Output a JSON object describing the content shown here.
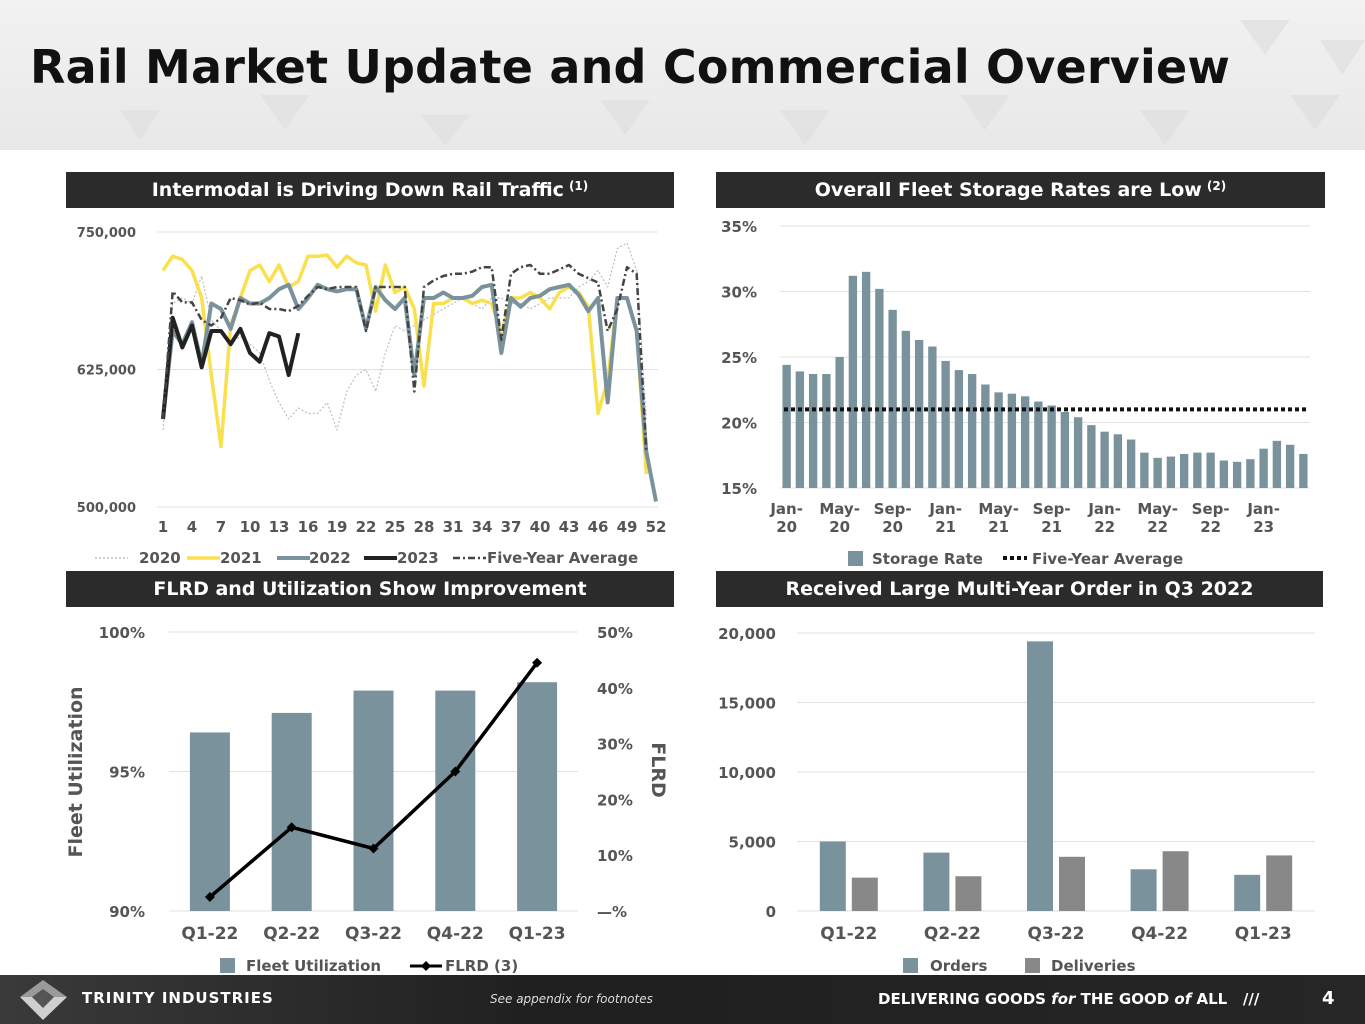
{
  "page_title": "Rail Market Update and Commercial Overview",
  "panels": {
    "p1_title": "Intermodal is Driving Down Rail Traffic",
    "p1_sup": "(1)",
    "p2_title": "Overall Fleet Storage Rates are Low",
    "p2_sup": "(2)",
    "p3_title": "FLRD and Utilization Show Improvement",
    "p4_title": "Received Large Multi-Year Order in Q3 2022"
  },
  "footer": {
    "brand": "TRINITY INDUSTRIES",
    "footnote": "See appendix for footnotes",
    "tagline_1": "DELIVERING GOODS ",
    "tagline_for": "for",
    "tagline_2": " THE GOOD ",
    "tagline_of": "of",
    "tagline_3": " ALL",
    "slashes": "///",
    "page": "4"
  },
  "colors": {
    "slate": "#7a929c",
    "yellow": "#f8e04e",
    "gray": "#888888",
    "dark": "#222222",
    "banner": "#2b2b2b"
  },
  "chart_data": [
    {
      "type": "line",
      "title": "Intermodal is Driving Down Rail Traffic",
      "ylim": [
        500000,
        750000
      ],
      "yticks": [
        500000,
        625000,
        750000
      ],
      "ytick_labels": [
        "500,000",
        "625,000",
        "750,000"
      ],
      "xticks": [
        1,
        4,
        7,
        10,
        13,
        16,
        19,
        22,
        25,
        28,
        31,
        34,
        37,
        40,
        43,
        46,
        49,
        52
      ],
      "series": [
        {
          "name": "2020",
          "values": [
            570000,
            685000,
            690000,
            685000,
            710000,
            670000,
            660000,
            650000,
            655000,
            648000,
            640000,
            615000,
            595000,
            580000,
            590000,
            585000,
            585000,
            595000,
            570000,
            605000,
            620000,
            625000,
            605000,
            640000,
            665000,
            660000,
            665000,
            670000,
            675000,
            680000,
            685000,
            690000,
            685000,
            680000,
            690000,
            690000,
            685000,
            685000,
            680000,
            685000,
            690000,
            690000,
            690000,
            700000,
            705000,
            715000,
            700000,
            735000,
            740000,
            715000,
            580000
          ]
        },
        {
          "name": "2021",
          "values": [
            715000,
            728000,
            725000,
            715000,
            690000,
            620000,
            555000,
            665000,
            690000,
            715000,
            720000,
            705000,
            720000,
            700000,
            705000,
            728000,
            728000,
            729000,
            718000,
            728000,
            722000,
            720000,
            678000,
            720000,
            695000,
            700000,
            680000,
            610000,
            685000,
            685000,
            690000,
            690000,
            685000,
            688000,
            685000,
            658000,
            690000,
            690000,
            695000,
            690000,
            680000,
            695000,
            700000,
            695000,
            682000,
            585000,
            615000,
            690000,
            690000,
            660000,
            530000
          ]
        },
        {
          "name": "2022",
          "values": [
            580000,
            660000,
            648000,
            668000,
            630000,
            685000,
            680000,
            662000,
            690000,
            685000,
            685000,
            690000,
            698000,
            702000,
            680000,
            690000,
            702000,
            698000,
            696000,
            698000,
            698000,
            662000,
            700000,
            688000,
            680000,
            690000,
            620000,
            690000,
            690000,
            695000,
            690000,
            690000,
            692000,
            700000,
            702000,
            640000,
            690000,
            682000,
            690000,
            692000,
            698000,
            700000,
            702000,
            693000,
            678000,
            690000,
            595000,
            690000,
            690000,
            660000,
            550000,
            505000
          ]
        },
        {
          "name": "2023",
          "values": [
            580000,
            672000,
            645000,
            665000,
            627000,
            660000,
            660000,
            648000,
            662000,
            640000,
            632000,
            658000,
            655000,
            620000,
            658000
          ]
        },
        {
          "name": "Five-Year Average",
          "values": [
            580000,
            696000,
            686000,
            686000,
            670000,
            665000,
            672000,
            690000,
            688000,
            684000,
            686000,
            680000,
            680000,
            678000,
            683000,
            692000,
            700000,
            698000,
            700000,
            700000,
            700000,
            660000,
            700000,
            700000,
            700000,
            700000,
            605000,
            700000,
            706000,
            710000,
            712000,
            712000,
            714000,
            718000,
            718000,
            652000,
            712000,
            718000,
            720000,
            712000,
            712000,
            716000,
            720000,
            712000,
            708000,
            704000,
            660000,
            680000,
            718000,
            712000,
            550000
          ]
        }
      ]
    },
    {
      "type": "bar",
      "title": "Overall Fleet Storage Rates are Low",
      "ylim": [
        15,
        35
      ],
      "yticks": [
        15,
        20,
        25,
        30,
        35
      ],
      "ytick_labels": [
        "15%",
        "20%",
        "25%",
        "30%",
        "35%"
      ],
      "x_labels": [
        [
          "Jan-",
          "20"
        ],
        [
          "May-",
          "20"
        ],
        [
          "Sep-",
          "20"
        ],
        [
          "Jan-",
          "21"
        ],
        [
          "May-",
          "21"
        ],
        [
          "Sep-",
          "21"
        ],
        [
          "Jan-",
          "22"
        ],
        [
          "May-",
          "22"
        ],
        [
          "Sep-",
          "22"
        ],
        [
          "Jan-",
          "23"
        ]
      ],
      "series": [
        {
          "name": "Storage Rate",
          "values": [
            24.4,
            23.9,
            23.7,
            23.7,
            25.0,
            31.2,
            31.5,
            30.2,
            28.6,
            27.0,
            26.3,
            25.8,
            24.7,
            24.0,
            23.7,
            22.9,
            22.3,
            22.2,
            22.0,
            21.6,
            21.3,
            20.8,
            20.4,
            19.8,
            19.3,
            19.1,
            18.7,
            17.7,
            17.3,
            17.4,
            17.6,
            17.7,
            17.7,
            17.1,
            17.0,
            17.2,
            18.0,
            18.6,
            18.3,
            17.6
          ]
        },
        {
          "name": "Five-Year Average",
          "value": 21.0
        }
      ]
    },
    {
      "type": "bar",
      "title": "FLRD and Utilization Show Improvement",
      "categories": [
        "Q1-22",
        "Q2-22",
        "Q3-22",
        "Q4-22",
        "Q1-23"
      ],
      "ylabel": "Fleet Utilization",
      "y2label": "FLRD",
      "ylim": [
        90,
        100
      ],
      "y2lim": [
        0,
        50
      ],
      "ytick_labels": [
        "90%",
        "95%",
        "100%"
      ],
      "y2tick_labels": [
        "—%",
        "10%",
        "20%",
        "30%",
        "40%",
        "50%"
      ],
      "series": [
        {
          "name": "Fleet Utilization",
          "values": [
            96.4,
            97.1,
            97.9,
            97.9,
            98.2
          ]
        },
        {
          "name": "FLRD (3)",
          "values": [
            2.5,
            15.0,
            11.2,
            25.0,
            44.5
          ]
        }
      ]
    },
    {
      "type": "bar",
      "title": "Received Large Multi-Year Order in Q3 2022",
      "categories": [
        "Q1-22",
        "Q2-22",
        "Q3-22",
        "Q4-22",
        "Q1-23"
      ],
      "ylim": [
        0,
        20000
      ],
      "ytick_labels": [
        "0",
        "5,000",
        "10,000",
        "15,000",
        "20,000"
      ],
      "series": [
        {
          "name": "Orders",
          "values": [
            5000,
            4200,
            19400,
            3000,
            2600
          ]
        },
        {
          "name": "Deliveries",
          "values": [
            2400,
            2500,
            3900,
            4300,
            4000
          ]
        }
      ]
    }
  ]
}
